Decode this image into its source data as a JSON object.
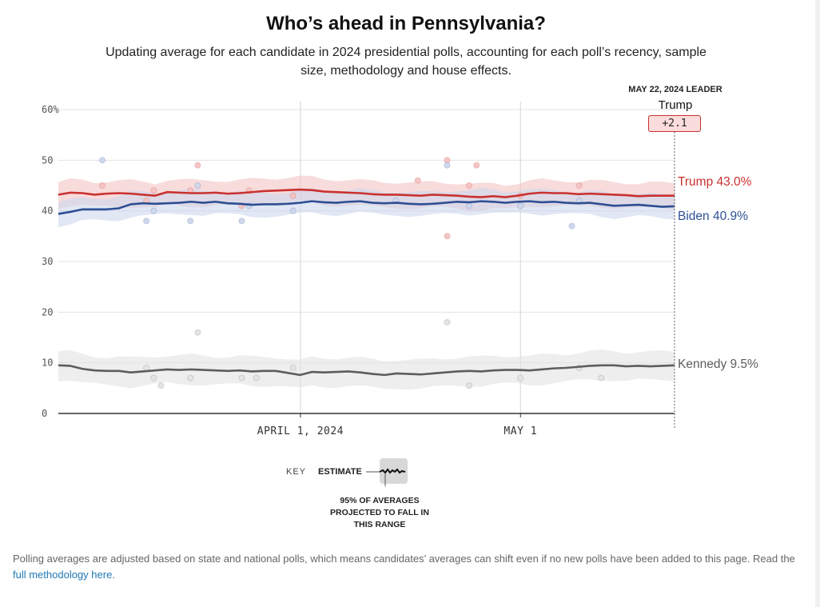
{
  "header": {
    "title": "Who’s ahead in Pennsylvania?",
    "subtitle": "Updating average for each candidate in 2024 presidential polls, accounting for each poll’s recency, sample size, methodology and house effects."
  },
  "leader": {
    "header": "MAY 22, 2024 LEADER",
    "name": "Trump",
    "margin": "+2.1"
  },
  "legend": {
    "key_label": "KEY",
    "estimate_label": "ESTIMATE",
    "range_note": "95% OF AVERAGES PROJECTED TO FALL IN THIS RANGE"
  },
  "footer": {
    "text": "Polling averages are adjusted based on state and national polls, which means candidates’ averages can shift even if no new polls have been added to this page. Read the ",
    "link_text": "full methodology here",
    "end": "."
  },
  "chart_data": {
    "type": "line",
    "title": "Who’s ahead in Pennsylvania?",
    "xlabel": "",
    "ylabel": "",
    "ylim": [
      0,
      60
    ],
    "yticks": [
      0,
      10,
      20,
      30,
      40,
      50,
      60
    ],
    "ytick_labels": [
      "0",
      "10",
      "20",
      "30",
      "40",
      "50",
      "60%"
    ],
    "x_start": "2024-02-28",
    "x_end": "2024-05-22",
    "xticks": [
      {
        "day": 33,
        "label": "APRIL 1, 2024"
      },
      {
        "day": 63,
        "label": "MAY 1"
      }
    ],
    "series": [
      {
        "name": "Trump",
        "end_label": "Trump 43.0%",
        "color": "#c9312f",
        "band_color": "#f3c3c3",
        "values": [
          43.2,
          43.6,
          43.5,
          43.2,
          43.4,
          43.5,
          43.4,
          43.2,
          43.0,
          43.7,
          43.6,
          43.5,
          43.5,
          43.6,
          43.4,
          43.5,
          43.7,
          43.9,
          44.0,
          44.1,
          44.2,
          44.1,
          43.8,
          43.7,
          43.6,
          43.5,
          43.3,
          43.2,
          43.2,
          43.1,
          43.0,
          43.2,
          43.1,
          43.0,
          42.8,
          42.7,
          42.9,
          42.7,
          43.0,
          43.4,
          43.6,
          43.5,
          43.5,
          43.3,
          43.4,
          43.3,
          43.2,
          43.1,
          42.9,
          43.0,
          43.0,
          43.0
        ],
        "band_half_width": 2.5,
        "polls": [
          {
            "day": 6,
            "value": 45
          },
          {
            "day": 12,
            "value": 42
          },
          {
            "day": 13,
            "value": 44
          },
          {
            "day": 18,
            "value": 44
          },
          {
            "day": 19,
            "value": 49
          },
          {
            "day": 25,
            "value": 41
          },
          {
            "day": 26,
            "value": 44
          },
          {
            "day": 32,
            "value": 43
          },
          {
            "day": 49,
            "value": 46
          },
          {
            "day": 53,
            "value": 50
          },
          {
            "day": 53,
            "value": 35
          },
          {
            "day": 56,
            "value": 45
          },
          {
            "day": 57,
            "value": 49
          },
          {
            "day": 63,
            "value": 43
          },
          {
            "day": 71,
            "value": 45
          }
        ]
      },
      {
        "name": "Biden",
        "end_label": "Biden 40.9%",
        "color": "#2d4f94",
        "band_color": "#cdd7ec",
        "values": [
          39.4,
          39.8,
          40.3,
          40.3,
          40.3,
          40.5,
          41.3,
          41.5,
          41.4,
          41.5,
          41.6,
          41.8,
          41.6,
          41.8,
          41.5,
          41.4,
          41.2,
          41.3,
          41.3,
          41.4,
          41.6,
          41.9,
          41.7,
          41.6,
          41.8,
          41.9,
          41.6,
          41.5,
          41.6,
          41.4,
          41.3,
          41.4,
          41.6,
          41.8,
          41.7,
          41.9,
          41.8,
          41.6,
          41.8,
          41.9,
          41.7,
          41.8,
          41.6,
          41.5,
          41.6,
          41.3,
          41.0,
          41.1,
          41.2,
          41.0,
          40.8,
          40.9
        ],
        "band_half_width": 2.3,
        "polls": [
          {
            "day": 6,
            "value": 50
          },
          {
            "day": 12,
            "value": 38
          },
          {
            "day": 13,
            "value": 40
          },
          {
            "day": 18,
            "value": 38
          },
          {
            "day": 19,
            "value": 45
          },
          {
            "day": 25,
            "value": 38
          },
          {
            "day": 26,
            "value": 41
          },
          {
            "day": 32,
            "value": 40
          },
          {
            "day": 46,
            "value": 42
          },
          {
            "day": 53,
            "value": 49
          },
          {
            "day": 56,
            "value": 41
          },
          {
            "day": 63,
            "value": 41
          },
          {
            "day": 70,
            "value": 37
          },
          {
            "day": 71,
            "value": 42
          }
        ]
      },
      {
        "name": "Kennedy",
        "end_label": "Kennedy 9.5%",
        "color": "#5d5d5d",
        "band_color": "#e3e3e3",
        "values": [
          9.5,
          9.4,
          8.8,
          8.5,
          8.4,
          8.4,
          8.1,
          8.3,
          8.5,
          8.7,
          8.6,
          8.7,
          8.6,
          8.5,
          8.4,
          8.5,
          8.3,
          8.4,
          8.4,
          8.0,
          7.6,
          8.2,
          8.1,
          8.2,
          8.3,
          8.1,
          7.8,
          7.6,
          7.9,
          7.8,
          7.7,
          7.9,
          8.1,
          8.3,
          8.4,
          8.3,
          8.5,
          8.6,
          8.6,
          8.5,
          8.7,
          8.9,
          9.0,
          9.2,
          9.4,
          9.5,
          9.5,
          9.3,
          9.4,
          9.3,
          9.4,
          9.5
        ],
        "band_half_width": 2.8,
        "polls": [
          {
            "day": 12,
            "value": 9
          },
          {
            "day": 13,
            "value": 7
          },
          {
            "day": 14,
            "value": 5.5
          },
          {
            "day": 18,
            "value": 7
          },
          {
            "day": 19,
            "value": 16
          },
          {
            "day": 25,
            "value": 7
          },
          {
            "day": 27,
            "value": 7
          },
          {
            "day": 32,
            "value": 9
          },
          {
            "day": 53,
            "value": 18
          },
          {
            "day": 56,
            "value": 5.5
          },
          {
            "day": 63,
            "value": 7
          },
          {
            "day": 71,
            "value": 9
          },
          {
            "day": 74,
            "value": 7
          }
        ]
      }
    ]
  }
}
